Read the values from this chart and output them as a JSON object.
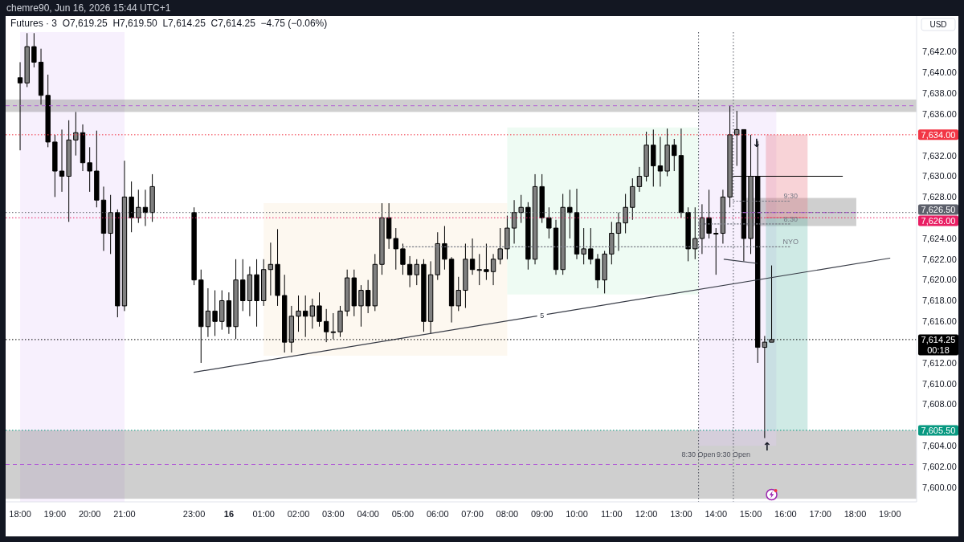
{
  "chart_data": {
    "type": "candlestick",
    "title": "chemre90, Jun 16, 2026 15:44 UTC+1",
    "subtitle": "Futures · 3  O7,619.25  H7,619.50  L7,614.25  C7,614.25  −4.75 (−0.06%)",
    "ylabel": "USD",
    "xlim": [
      "2026-06-15T17:35",
      "2026-06-16T19:46"
    ],
    "ylim": [
      7598.6,
      7643.9
    ],
    "xticks": [
      {
        "value": "2026-06-15T18:00",
        "label": "18:00"
      },
      {
        "value": "2026-06-15T19:00",
        "label": "19:00"
      },
      {
        "value": "2026-06-15T20:00",
        "label": "20:00"
      },
      {
        "value": "2026-06-15T21:00",
        "label": "21:00"
      },
      {
        "value": "2026-06-15T23:00",
        "label": "23:00"
      },
      {
        "value": "2026-06-16T00:00",
        "label": "16"
      },
      {
        "value": "2026-06-16T01:00",
        "label": "01:00"
      },
      {
        "value": "2026-06-16T02:00",
        "label": "02:00"
      },
      {
        "value": "2026-06-16T03:00",
        "label": "03:00"
      },
      {
        "value": "2026-06-16T04:00",
        "label": "04:00"
      },
      {
        "value": "2026-06-16T05:00",
        "label": "05:00"
      },
      {
        "value": "2026-06-16T06:00",
        "label": "06:00"
      },
      {
        "value": "2026-06-16T07:00",
        "label": "07:00"
      },
      {
        "value": "2026-06-16T08:00",
        "label": "08:00"
      },
      {
        "value": "2026-06-16T09:00",
        "label": "09:00"
      },
      {
        "value": "2026-06-16T10:00",
        "label": "10:00"
      },
      {
        "value": "2026-06-16T11:00",
        "label": "11:00"
      },
      {
        "value": "2026-06-16T12:00",
        "label": "12:00"
      },
      {
        "value": "2026-06-16T13:00",
        "label": "13:00"
      },
      {
        "value": "2026-06-16T14:00",
        "label": "14:00"
      },
      {
        "value": "2026-06-16T15:00",
        "label": "15:00"
      },
      {
        "value": "2026-06-16T16:00",
        "label": "16:00"
      },
      {
        "value": "2026-06-16T17:00",
        "label": "17:00"
      },
      {
        "value": "2026-06-16T18:00",
        "label": "18:00"
      },
      {
        "value": "2026-06-16T19:00",
        "label": "19:00"
      }
    ],
    "yticks": [
      {
        "value": 7600,
        "label": "7,600.00"
      },
      {
        "value": 7602,
        "label": "7,602.00"
      },
      {
        "value": 7604,
        "label": "7,604.00"
      },
      {
        "value": 7608,
        "label": "7,608.00"
      },
      {
        "value": 7610,
        "label": "7,610.00"
      },
      {
        "value": 7612,
        "label": "7,612.00"
      },
      {
        "value": 7616,
        "label": "7,616.00"
      },
      {
        "value": 7618,
        "label": "7,618.00"
      },
      {
        "value": 7620,
        "label": "7,620.00"
      },
      {
        "value": 7622,
        "label": "7,622.00"
      },
      {
        "value": 7624,
        "label": "7,624.00"
      },
      {
        "value": 7628,
        "label": "7,628.00"
      },
      {
        "value": 7630,
        "label": "7,630.00"
      },
      {
        "value": 7632,
        "label": "7,632.00"
      },
      {
        "value": 7636,
        "label": "7,636.00"
      },
      {
        "value": 7638,
        "label": "7,638.00"
      },
      {
        "value": 7640,
        "label": "7,640.00"
      },
      {
        "value": 7642,
        "label": "7,642.00"
      }
    ],
    "bands": [
      {
        "axis": "x",
        "from": "2026-06-15T18:00",
        "to": "2026-06-15T21:00",
        "color": "#e4cdf8"
      },
      {
        "axis": "y",
        "from": 7636.2,
        "to": 7637.4,
        "color": "#5f5f5f"
      },
      {
        "axis": "y",
        "from": 7598.9,
        "to": 7605.5,
        "color": "#5f5f5f"
      }
    ],
    "ref_lines": [
      {
        "axis": "y",
        "value": 7636.8,
        "color": "#b25fd6",
        "line_style": "dashed"
      },
      {
        "axis": "y",
        "value": 7602.2,
        "color": "#b25fd6",
        "line_style": "dashed"
      },
      {
        "axis": "x",
        "value": "2026-06-16T13:30",
        "label": "8:30 Open",
        "color": "#50535e",
        "line_style": "dotted"
      },
      {
        "axis": "x",
        "value": "2026-06-16T14:30",
        "label": "9:30 Open",
        "color": "#50535e",
        "line_style": "dotted"
      },
      {
        "axis": "y",
        "value": 7634,
        "label": "7,634.00",
        "color": "#f23645",
        "line_style": "dotted"
      },
      {
        "axis": "y",
        "value": 7626.5,
        "label": "7,626.50",
        "color": "#5d606b",
        "line_style": "dotted"
      },
      {
        "axis": "y",
        "value": 7626,
        "label": "7,626.00",
        "color": "#e91e63",
        "line_style": "dotted"
      },
      {
        "axis": "y",
        "value": 7614.25,
        "label": "7,614.25\n00:18",
        "color": "#000000",
        "line_style": "dotted"
      },
      {
        "axis": "y",
        "value": 7605.5,
        "label": "7,605.50",
        "color": "#089981",
        "line_style": "dotted"
      }
    ],
    "annotations": [
      {
        "text": "↓",
        "x": "2026-06-16T15:10",
        "y": 7633.2
      },
      {
        "text": "↑",
        "x": "2026-06-16T15:28",
        "y": 7603.9
      }
    ],
    "series": [
      {
        "type": "line",
        "color": "#f8e8cd",
        "x": [
          "2026-06-16T01:00",
          "2026-06-16T08:00"
        ],
        "values": [
          null,
          null
        ],
        "lower": [
          7612.7,
          7612.7
        ],
        "upper": [
          7627.4,
          7627.4
        ]
      },
      {
        "type": "line",
        "color": "#c6f2d7",
        "x": [
          "2026-06-16T08:00",
          "2026-06-16T13:30"
        ],
        "values": [
          null,
          null
        ],
        "lower": [
          7618.6,
          7618.6
        ],
        "upper": [
          7634.7,
          7634.7
        ]
      },
      {
        "type": "line",
        "color": "#e4cdf8",
        "x": [
          "2026-06-16T13:30",
          "2026-06-16T15:44"
        ],
        "values": [
          null,
          null
        ],
        "lower": [
          7604.0,
          7604.0
        ],
        "upper": [
          7636.8,
          7636.8
        ]
      },
      {
        "type": "line",
        "color": "#5f5f5f",
        "x": [
          "2026-06-16T14:47",
          "2026-06-16T18:02"
        ],
        "values": [
          null,
          null
        ],
        "lower": [
          7625.2,
          7625.2
        ],
        "upper": [
          7627.9,
          7627.9
        ]
      },
      {
        "type": "line",
        "color": "#e86c7a",
        "x": [
          "2026-06-16T15:26",
          "2026-06-16T16:38"
        ],
        "values": [
          7626,
          7626
        ],
        "lower": [
          7626,
          7626
        ],
        "upper": [
          7634,
          7634
        ]
      },
      {
        "type": "line",
        "color": "#5fb9a8",
        "x": [
          "2026-06-16T15:26",
          "2026-06-16T16:38"
        ],
        "values": [
          null,
          null
        ],
        "lower": [
          7605.5,
          7605.5
        ],
        "upper": [
          7626,
          7626
        ]
      },
      {
        "color": "#000000",
        "x": [
          "2026-06-15T18:00",
          "2026-06-15T18:12",
          "2026-06-15T18:24",
          "2026-06-15T18:36",
          "2026-06-15T18:48",
          "2026-06-15T19:00",
          "2026-06-15T19:12",
          "2026-06-15T19:24",
          "2026-06-15T19:36",
          "2026-06-15T19:48",
          "2026-06-15T20:00",
          "2026-06-15T20:12",
          "2026-06-15T20:24",
          "2026-06-15T20:36",
          "2026-06-15T20:48",
          "2026-06-15T21:00",
          "2026-06-15T21:12",
          "2026-06-15T21:24",
          "2026-06-15T21:36",
          "2026-06-15T21:48",
          "2026-06-15T23:00",
          "2026-06-15T23:12",
          "2026-06-15T23:24",
          "2026-06-15T23:36",
          "2026-06-15T23:48",
          "2026-06-16T00:00",
          "2026-06-16T00:12",
          "2026-06-16T00:24",
          "2026-06-16T00:36",
          "2026-06-16T00:48",
          "2026-06-16T01:00",
          "2026-06-16T01:12",
          "2026-06-16T01:24",
          "2026-06-16T01:36",
          "2026-06-16T01:48",
          "2026-06-16T02:00",
          "2026-06-16T02:12",
          "2026-06-16T02:24",
          "2026-06-16T02:36",
          "2026-06-16T02:48",
          "2026-06-16T03:00",
          "2026-06-16T03:12",
          "2026-06-16T03:24",
          "2026-06-16T03:36",
          "2026-06-16T03:48",
          "2026-06-16T04:00",
          "2026-06-16T04:12",
          "2026-06-16T04:24",
          "2026-06-16T04:36",
          "2026-06-16T04:48",
          "2026-06-16T05:00",
          "2026-06-16T05:12",
          "2026-06-16T05:24",
          "2026-06-16T05:36",
          "2026-06-16T05:48",
          "2026-06-16T06:00",
          "2026-06-16T06:12",
          "2026-06-16T06:24",
          "2026-06-16T06:36",
          "2026-06-16T06:48",
          "2026-06-16T07:00",
          "2026-06-16T07:12",
          "2026-06-16T07:24",
          "2026-06-16T07:36",
          "2026-06-16T07:48",
          "2026-06-16T08:00",
          "2026-06-16T08:12",
          "2026-06-16T08:24",
          "2026-06-16T08:36",
          "2026-06-16T08:48",
          "2026-06-16T09:00",
          "2026-06-16T09:12",
          "2026-06-16T09:24",
          "2026-06-16T09:36",
          "2026-06-16T09:48",
          "2026-06-16T10:00",
          "2026-06-16T10:12",
          "2026-06-16T10:24",
          "2026-06-16T10:36",
          "2026-06-16T10:48",
          "2026-06-16T11:00",
          "2026-06-16T11:12",
          "2026-06-16T11:24",
          "2026-06-16T11:36",
          "2026-06-16T11:48",
          "2026-06-16T12:00",
          "2026-06-16T12:12",
          "2026-06-16T12:24",
          "2026-06-16T12:36",
          "2026-06-16T12:48",
          "2026-06-16T13:00",
          "2026-06-16T13:12",
          "2026-06-16T13:24",
          "2026-06-16T13:36",
          "2026-06-16T13:48",
          "2026-06-16T14:00",
          "2026-06-16T14:12",
          "2026-06-16T14:24",
          "2026-06-16T14:36",
          "2026-06-16T14:48",
          "2026-06-16T15:00",
          "2026-06-16T15:12",
          "2026-06-16T15:24",
          "2026-06-16T15:36"
        ],
        "ohlc": [
          [
            7639.5,
            7641,
            7632.5,
            7639
          ],
          [
            7639,
            7643.8,
            7638.6,
            7642.5
          ],
          [
            7642.5,
            7643.8,
            7640.5,
            7641
          ],
          [
            7641,
            7642.3,
            7636.9,
            7637.8
          ],
          [
            7637.8,
            7639.8,
            7632.8,
            7633.3
          ],
          [
            7633.3,
            7634,
            7628,
            7630.5
          ],
          [
            7630.5,
            7634.5,
            7628.5,
            7630
          ],
          [
            7630,
            7635.4,
            7625.6,
            7633.5
          ],
          [
            7633.5,
            7636.2,
            7632,
            7634.2
          ],
          [
            7634.2,
            7635,
            7630.5,
            7631.3
          ],
          [
            7631.3,
            7632.8,
            7628.5,
            7630.5
          ],
          [
            7630.5,
            7634.4,
            7627,
            7627.7
          ],
          [
            7627.7,
            7629,
            7622.8,
            7624.5
          ],
          [
            7624.5,
            7628.2,
            7622.5,
            7626.5
          ],
          [
            7626.5,
            7626.8,
            7616.4,
            7617.5
          ],
          [
            7617.5,
            7631.5,
            7617,
            7628
          ],
          [
            7628,
            7629.5,
            7624.6,
            7626
          ],
          [
            7626,
            7628.7,
            7625.5,
            7627
          ],
          [
            7627,
            7628.7,
            7625.2,
            7626.5
          ],
          [
            7626.5,
            7630.2,
            7625.6,
            7629
          ],
          [
            7626.5,
            7627,
            7619.5,
            7620
          ],
          [
            7620,
            7621,
            7612,
            7615.5
          ],
          [
            7615.5,
            7619.2,
            7614.5,
            7617
          ],
          [
            7617,
            7619,
            7614.6,
            7616
          ],
          [
            7616,
            7619,
            7615.2,
            7618
          ],
          [
            7618,
            7618.8,
            7614.8,
            7615.5
          ],
          [
            7615.5,
            7622,
            7614.3,
            7620
          ],
          [
            7620,
            7622,
            7617,
            7618
          ],
          [
            7618,
            7621.3,
            7616.5,
            7620.5
          ],
          [
            7620.5,
            7622,
            7615.5,
            7618
          ],
          [
            7618,
            7622,
            7617.5,
            7621
          ],
          [
            7621,
            7623.6,
            7618.5,
            7621.5
          ],
          [
            7621.5,
            7624.9,
            7617.5,
            7618.5
          ],
          [
            7618.5,
            7620.5,
            7613,
            7614
          ],
          [
            7614,
            7617.5,
            7613,
            7616.5
          ],
          [
            7616.5,
            7618.5,
            7615,
            7617
          ],
          [
            7617,
            7618.5,
            7614.5,
            7616.5
          ],
          [
            7616.5,
            7618.2,
            7615.3,
            7617.5
          ],
          [
            7617.5,
            7618.8,
            7615.5,
            7616
          ],
          [
            7616,
            7617.2,
            7614,
            7615
          ],
          [
            7615,
            7616.8,
            7614.3,
            7615
          ],
          [
            7615,
            7617.5,
            7614.5,
            7617
          ],
          [
            7617,
            7621,
            7616.5,
            7620.2
          ],
          [
            7620.2,
            7621,
            7616.5,
            7617.5
          ],
          [
            7617.5,
            7619.5,
            7615.5,
            7619
          ],
          [
            7619,
            7620,
            7616.8,
            7617.5
          ],
          [
            7617.5,
            7622.5,
            7617,
            7621.5
          ],
          [
            7621.5,
            7627.4,
            7620.5,
            7626
          ],
          [
            7626,
            7627.4,
            7623,
            7624
          ],
          [
            7624,
            7625,
            7621,
            7623
          ],
          [
            7623,
            7623.5,
            7620.5,
            7621.5
          ],
          [
            7621.5,
            7622.3,
            7619.3,
            7620.5
          ],
          [
            7620.5,
            7622,
            7619.5,
            7621.5
          ],
          [
            7621.5,
            7622,
            7615,
            7616
          ],
          [
            7616,
            7621.8,
            7614.8,
            7620.5
          ],
          [
            7620.5,
            7624.6,
            7620,
            7623.5
          ],
          [
            7623.5,
            7625.2,
            7621,
            7622
          ],
          [
            7622,
            7622.2,
            7615.9,
            7617.5
          ],
          [
            7617.5,
            7620.3,
            7617,
            7619
          ],
          [
            7619,
            7623.5,
            7617.3,
            7622
          ],
          [
            7622,
            7624,
            7620.5,
            7621
          ],
          [
            7621,
            7622.5,
            7619.5,
            7621
          ],
          [
            7621,
            7623.5,
            7620,
            7620.8
          ],
          [
            7620.8,
            7622.5,
            7619.5,
            7622
          ],
          [
            7622,
            7625,
            7621.5,
            7623
          ],
          [
            7623,
            7626.2,
            7622,
            7625
          ],
          [
            7625,
            7627.7,
            7623.5,
            7626.5
          ],
          [
            7626.5,
            7628.2,
            7625.5,
            7627
          ],
          [
            7627,
            7627.5,
            7621,
            7622
          ],
          [
            7622,
            7630.2,
            7621.5,
            7629
          ],
          [
            7629,
            7630.2,
            7625.5,
            7626
          ],
          [
            7626,
            7627,
            7624,
            7625
          ],
          [
            7625,
            7625.8,
            7620.5,
            7621
          ],
          [
            7621,
            7628.3,
            7620.5,
            7627
          ],
          [
            7627,
            7628.7,
            7624,
            7626.5
          ],
          [
            7626.5,
            7628.8,
            7622,
            7622.5
          ],
          [
            7622.5,
            7625,
            7621.5,
            7623
          ],
          [
            7623,
            7625,
            7621.5,
            7622
          ],
          [
            7622,
            7622.5,
            7619.2,
            7620
          ],
          [
            7620,
            7622.8,
            7618.7,
            7622.5
          ],
          [
            7622.5,
            7625.6,
            7621.5,
            7624.5
          ],
          [
            7624.5,
            7626.5,
            7622.8,
            7625.5
          ],
          [
            7625.5,
            7628.3,
            7624.5,
            7627
          ],
          [
            7627,
            7629.8,
            7625.8,
            7629
          ],
          [
            7629,
            7630.9,
            7628.5,
            7630
          ],
          [
            7630,
            7634.3,
            7629.5,
            7633
          ],
          [
            7633,
            7634.5,
            7629,
            7631
          ],
          [
            7631,
            7633.8,
            7629,
            7630.5
          ],
          [
            7630.5,
            7634.6,
            7630,
            7633
          ],
          [
            7633,
            7633.6,
            7630.5,
            7632
          ],
          [
            7632,
            7634.6,
            7626,
            7626.5
          ],
          [
            7626.5,
            7627,
            7621.8,
            7623
          ],
          [
            7623,
            7627,
            7622,
            7624
          ],
          [
            7624,
            7627.3,
            7622.5,
            7626
          ],
          [
            7626,
            7628.7,
            7624,
            7624.5
          ],
          [
            7624.5,
            7625,
            7620.5,
            7624.5
          ],
          [
            7624.5,
            7628.7,
            7623.5,
            7628
          ],
          [
            7628,
            7636.8,
            7627,
            7634
          ],
          [
            7634,
            7636.3,
            7631,
            7634.5
          ],
          [
            7634.5,
            7634.5,
            7621.8,
            7624
          ],
          [
            7624,
            7634,
            7622.5,
            7630
          ],
          [
            7630,
            7633.4,
            7612,
            7613.5
          ],
          [
            7613.5,
            7614.6,
            7604.75,
            7614
          ],
          [
            7614,
            7621.4,
            7614,
            7614.25
          ]
        ]
      },
      {
        "type": "line",
        "name": "5",
        "color": "#363a45",
        "x": [
          "2026-06-15T23:00",
          "2026-06-16T19:00"
        ],
        "values": [
          7611.1,
          7622.1
        ]
      },
      {
        "type": "line",
        "name": "NYO",
        "color": "#787b86",
        "line_style": "dotted",
        "x": [
          "2026-06-16T05:00",
          "2026-06-16T16:09"
        ],
        "values": [
          7623.2,
          7623.2
        ]
      },
      {
        "type": "line",
        "name": "8:30",
        "color": "#787b86",
        "line_style": "dotted",
        "x": [
          "2026-06-16T13:30",
          "2026-06-16T16:09"
        ],
        "values": [
          7625.4,
          7625.4
        ]
      },
      {
        "type": "line",
        "name": "9:30",
        "color": "#787b86",
        "line_style": "dotted",
        "x": [
          "2026-06-16T14:30",
          "2026-06-16T16:09"
        ],
        "values": [
          7627.6,
          7627.6
        ]
      },
      {
        "type": "line",
        "color": "#000000",
        "x": [
          "2026-06-16T14:30",
          "2026-06-16T17:38"
        ],
        "values": [
          7630,
          7630
        ]
      },
      {
        "type": "line",
        "color": "#363a45",
        "x": [
          "2026-06-16T14:14",
          "2026-06-16T15:11"
        ],
        "values": [
          7622.0,
          7621.6
        ]
      },
      {
        "type": "line",
        "color": "#b25fd6",
        "line_style": "dashed",
        "x": [
          "2026-06-16T14:47",
          "2026-06-16T18:02"
        ],
        "values": [
          7626.5,
          7626.5
        ]
      }
    ]
  }
}
